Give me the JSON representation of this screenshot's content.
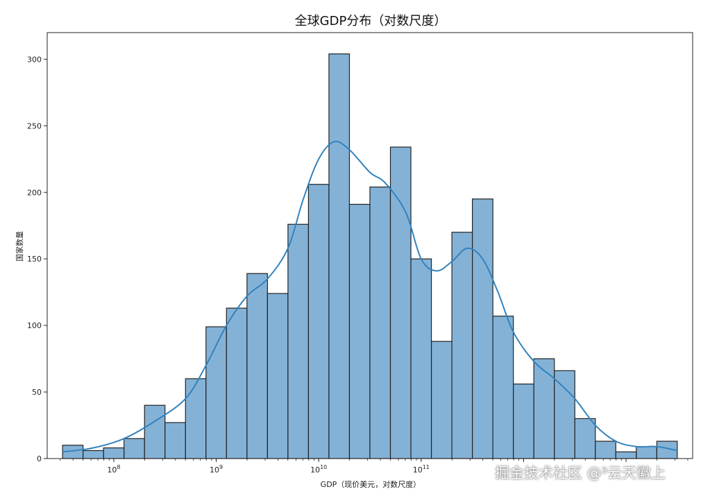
{
  "chart_data": {
    "type": "bar",
    "title": "全球GDP分布（对数尺度）",
    "xlabel": "GDP（现价美元，对数尺度）",
    "ylabel": "国家数量",
    "xscale": "log",
    "xlim_exp": [
      7.35,
      13.65
    ],
    "ylim": [
      0,
      320
    ],
    "yticks": [
      0,
      50,
      100,
      150,
      200,
      250,
      300
    ],
    "xticks": [
      {
        "exp": 8,
        "label": "10",
        "sup": "8"
      },
      {
        "exp": 9,
        "label": "10",
        "sup": "9"
      },
      {
        "exp": 10,
        "label": "10",
        "sup": "10"
      },
      {
        "exp": 11,
        "label": "10",
        "sup": "11"
      }
    ],
    "bin_edges_exp": [
      7.5,
      7.7,
      7.9,
      8.1,
      8.3,
      8.5,
      8.7,
      8.9,
      9.1,
      9.3,
      9.5,
      9.7,
      9.9,
      10.1,
      10.3,
      10.5,
      10.7,
      10.9,
      11.1,
      11.3,
      11.5,
      11.7,
      11.9,
      12.1,
      12.3,
      12.5,
      12.7,
      12.9,
      13.1,
      13.3,
      13.5
    ],
    "values": [
      10,
      6,
      8,
      15,
      40,
      27,
      60,
      99,
      113,
      139,
      124,
      176,
      206,
      304,
      191,
      204,
      234,
      150,
      88,
      170,
      195,
      107,
      56,
      75,
      66,
      30,
      13,
      5,
      9,
      13
    ],
    "kde": [
      [
        7.5,
        5
      ],
      [
        7.8,
        8
      ],
      [
        8.1,
        15
      ],
      [
        8.4,
        28
      ],
      [
        8.7,
        45
      ],
      [
        8.9,
        70
      ],
      [
        9.1,
        100
      ],
      [
        9.3,
        122
      ],
      [
        9.5,
        135
      ],
      [
        9.7,
        158
      ],
      [
        9.85,
        195
      ],
      [
        10.0,
        225
      ],
      [
        10.15,
        238
      ],
      [
        10.3,
        232
      ],
      [
        10.5,
        215
      ],
      [
        10.65,
        207
      ],
      [
        10.85,
        185
      ],
      [
        11.0,
        150
      ],
      [
        11.15,
        141
      ],
      [
        11.3,
        148
      ],
      [
        11.45,
        158
      ],
      [
        11.6,
        150
      ],
      [
        11.75,
        125
      ],
      [
        11.9,
        95
      ],
      [
        12.1,
        73
      ],
      [
        12.3,
        60
      ],
      [
        12.5,
        45
      ],
      [
        12.7,
        25
      ],
      [
        12.9,
        13
      ],
      [
        13.1,
        9
      ],
      [
        13.3,
        9
      ],
      [
        13.5,
        6
      ]
    ],
    "bar_color": "#84b2d6",
    "bar_edge": "#222222",
    "kde_color": "#3283be",
    "grid": false,
    "legend": "none"
  },
  "watermark": "掘金技术社区 @³云天徽上"
}
